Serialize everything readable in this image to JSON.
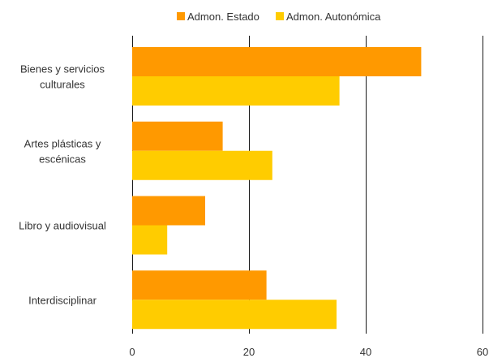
{
  "chart_data": {
    "type": "bar",
    "orientation": "horizontal",
    "categories": [
      [
        "Bienes y servicios",
        "culturales"
      ],
      [
        "Artes plásticas y",
        "escénicas"
      ],
      [
        "Libro y  audiovisual"
      ],
      [
        "Interdisciplinar"
      ]
    ],
    "series": [
      {
        "name": "Admon. Estado",
        "color": "#FF9900",
        "values": [
          49.5,
          15.5,
          12.5,
          23
        ]
      },
      {
        "name": "Admon. Autonómica",
        "color": "#FFCC00",
        "values": [
          35.5,
          24,
          6,
          35
        ]
      }
    ],
    "xlim": [
      0,
      60
    ],
    "xticks": [
      "0",
      "20",
      "40",
      "60"
    ],
    "grid": true,
    "legend": "top-center",
    "title": "",
    "xlabel": "",
    "ylabel": ""
  }
}
